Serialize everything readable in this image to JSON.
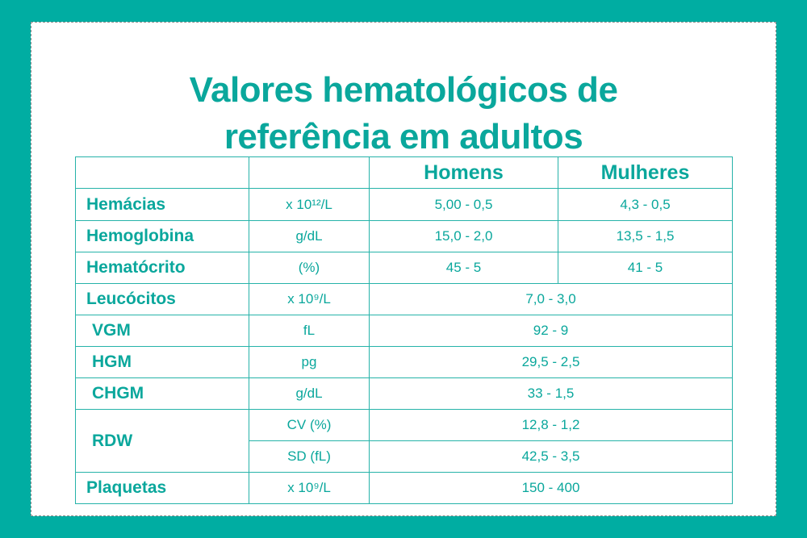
{
  "title": {
    "line1": "Valores hematológicos de",
    "line2": "referência em adultos"
  },
  "table": {
    "headers": {
      "param": "",
      "unit": "",
      "men": "Homens",
      "women": "Mulheres"
    },
    "rows": [
      {
        "param": "Hemácias",
        "unit": "x 10¹²/L",
        "men": "5,00 - 0,5",
        "women": "4,3 - 0,5"
      },
      {
        "param": "Hemoglobina",
        "unit": "g/dL",
        "men": "15,0 - 2,0",
        "women": "13,5 - 1,5"
      },
      {
        "param": "Hematócrito",
        "unit": "(%)",
        "men": "45 - 5",
        "women": "41 - 5"
      },
      {
        "param": "Leucócitos",
        "unit": "x 10⁹/L",
        "value": "7,0 - 3,0"
      },
      {
        "param": "VGM",
        "unit": "fL",
        "value": "92 - 9"
      },
      {
        "param": "HGM",
        "unit": "pg",
        "value": "29,5 - 2,5"
      },
      {
        "param": "CHGM",
        "unit": "g/dL",
        "value": "33 - 1,5"
      },
      {
        "param": "RDW",
        "sub": [
          {
            "unit": "CV (%)",
            "value": "12,8 - 1,2"
          },
          {
            "unit": "SD (fL)",
            "value": "42,5 - 3,5"
          }
        ]
      },
      {
        "param": "Plaquetas",
        "unit": "x 10⁹/L",
        "value": "150 - 400"
      }
    ]
  },
  "colors": {
    "background": "#00ada2",
    "text": "#0aa79c",
    "border": "#26b3a9",
    "card": "#ffffff"
  }
}
